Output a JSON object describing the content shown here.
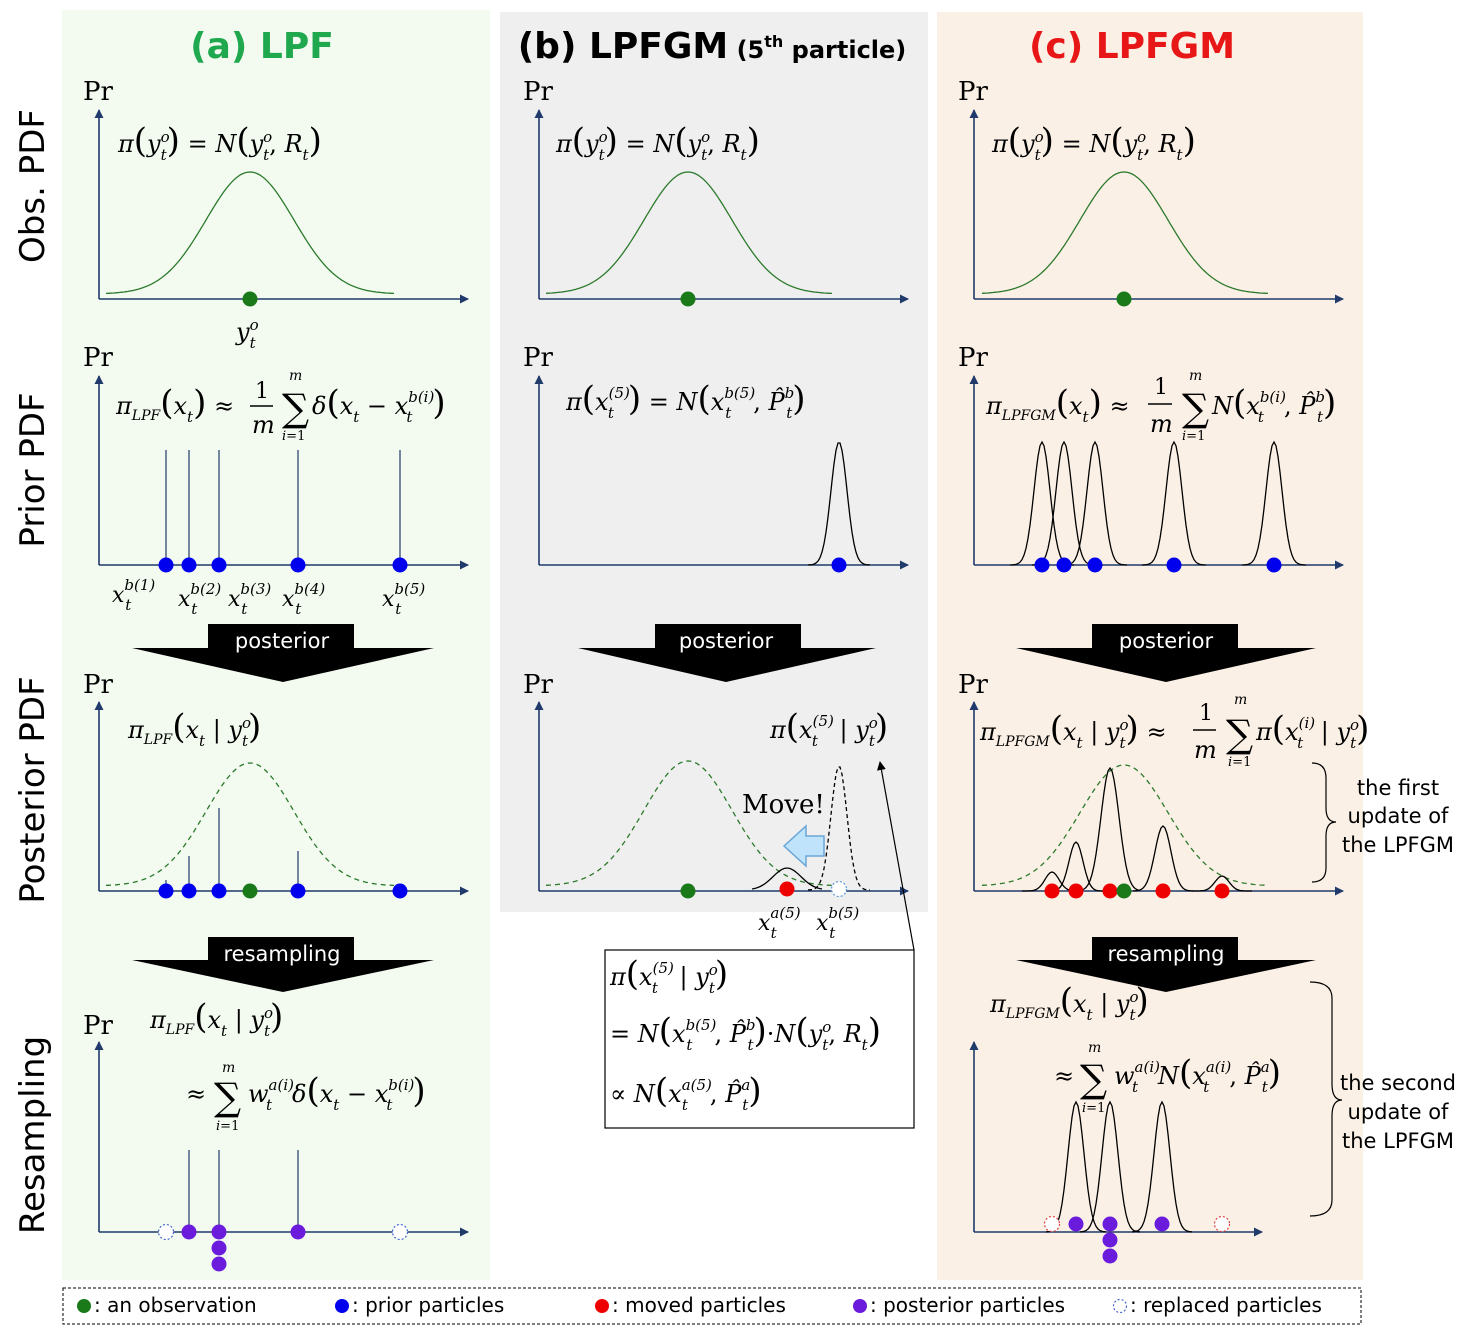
{
  "columns": {
    "a": {
      "prefix": "(a) ",
      "name": "LPF",
      "color": "#1fa84d"
    },
    "b": {
      "prefix": "(b) ",
      "name": "LPFGM",
      "suffix_pre": " (5",
      "suffix_sup": "th",
      "suffix_post": " particle)",
      "color": "#000000"
    },
    "c": {
      "prefix": "(c) ",
      "name": "LPFGM",
      "color": "#e81717"
    }
  },
  "row_labels": [
    "Obs. PDF",
    "Prior PDF",
    "Posterior PDF",
    "Resampling"
  ],
  "axis_label": "Pr",
  "arrows": {
    "posterior": "posterior",
    "resampling": "resampling",
    "move": "Move!"
  },
  "braces": {
    "first": [
      "the first",
      "update of",
      "the LPFGM"
    ],
    "second": [
      "the second",
      "update of",
      "the LPFGM"
    ]
  },
  "prior_labels": [
    "b(1)",
    "b(2)",
    "b(3)",
    "b(4)",
    "b(5)"
  ],
  "moved_labels": [
    "a(5)",
    "b(5)"
  ],
  "legend": [
    {
      "label": ": an observation",
      "color": "#1a7a1a",
      "kind": "filled"
    },
    {
      "label": ": prior particles",
      "color": "#0000ee",
      "kind": "filled"
    },
    {
      "label": ": moved particles",
      "color": "#ee0000",
      "kind": "filled"
    },
    {
      "label": ": posterior particles",
      "color": "#6a1bdc",
      "kind": "filled"
    },
    {
      "label": ": replaced particles",
      "color": "#4466cc",
      "kind": "dashed"
    }
  ],
  "colors": {
    "panel_a": "#f3fbf1",
    "panel_b": "#efefef",
    "panel_c": "#fbf0e6",
    "axis": "#1f3a6b",
    "curve_obs": "#2b7a2b",
    "observation": "#1a7a1a",
    "prior": "#0000ee",
    "moved": "#ee0000",
    "posterior": "#6a1bdc",
    "move_arrow": "#bfe3fb"
  }
}
